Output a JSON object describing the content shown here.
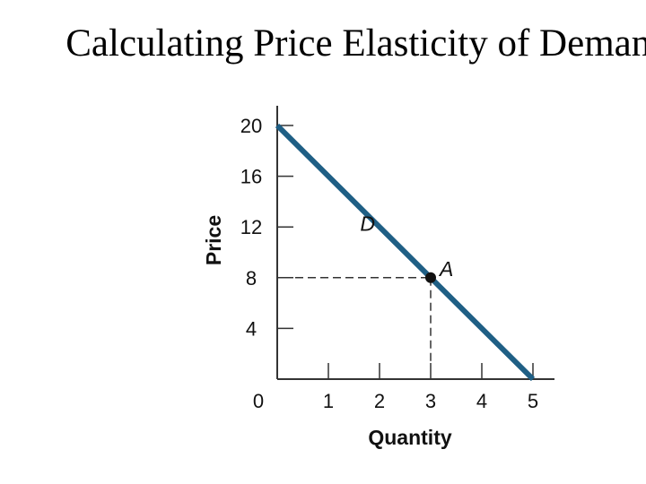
{
  "chart_data": {
    "type": "line",
    "title": "Calculating Price Elasticity of Demand",
    "xlabel": "Quantity",
    "ylabel": "Price",
    "xlim": [
      0,
      5
    ],
    "ylim": [
      0,
      20
    ],
    "x_ticks": [
      1,
      2,
      3,
      4,
      5
    ],
    "y_ticks": [
      4,
      8,
      12,
      16,
      20
    ],
    "origin_label": "0",
    "grid": false,
    "series": [
      {
        "name": "D",
        "x": [
          0,
          5
        ],
        "y": [
          20,
          0
        ],
        "color": "#1f5f85"
      }
    ],
    "annotations": [
      {
        "label": "A",
        "x": 3,
        "y": 8,
        "dashed_guides": true
      }
    ]
  }
}
